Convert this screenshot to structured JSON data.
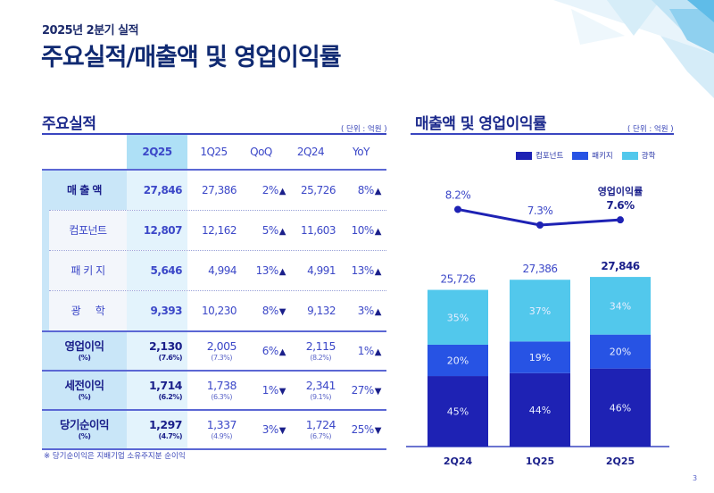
{
  "header": {
    "subtitle": "2025년 2분기 실적",
    "title": "주요실적/매출액 및 영업이익률"
  },
  "table_section": {
    "title": "주요실적",
    "unit": "( 단위 : 억원 )",
    "columns": [
      "2Q25",
      "1Q25",
      "QoQ",
      "2Q24",
      "YoY"
    ],
    "rows": [
      {
        "label": "매 출 액",
        "type": "main",
        "v2q25": "27,846",
        "v1q25": "27,386",
        "qoq": "2%",
        "qoq_dir": "▲",
        "v2q24": "25,726",
        "yoy": "8%",
        "yoy_dir": "▲"
      },
      {
        "label": "컴포넌트",
        "type": "sub",
        "v2q25": "12,807",
        "v1q25": "12,162",
        "qoq": "5%",
        "qoq_dir": "▲",
        "v2q24": "11,603",
        "yoy": "10%",
        "yoy_dir": "▲"
      },
      {
        "label": "패 키 지",
        "type": "sub",
        "v2q25": "5,646",
        "v1q25": "4,994",
        "qoq": "13%",
        "qoq_dir": "▲",
        "v2q24": "4,991",
        "yoy": "13%",
        "yoy_dir": "▲"
      },
      {
        "label": "광     학",
        "type": "sub",
        "v2q25": "9,393",
        "v1q25": "10,230",
        "qoq": "8%",
        "qoq_dir": "▼",
        "v2q24": "9,132",
        "yoy": "3%",
        "yoy_dir": "▲"
      }
    ],
    "profit_rows": [
      {
        "label": "영업이익",
        "sublabel": "(%)",
        "v2q25": "2,130",
        "m2q25": "(7.6%)",
        "v1q25": "2,005",
        "m1q25": "(7.3%)",
        "qoq": "6%",
        "qoq_dir": "▲",
        "v2q24": "2,115",
        "m2q24": "(8.2%)",
        "yoy": "1%",
        "yoy_dir": "▲"
      },
      {
        "label": "세전이익",
        "sublabel": "(%)",
        "v2q25": "1,714",
        "m2q25": "(6.2%)",
        "v1q25": "1,738",
        "m1q25": "(6.3%)",
        "qoq": "1%",
        "qoq_dir": "▼",
        "v2q24": "2,341",
        "m2q24": "(9.1%)",
        "yoy": "27%",
        "yoy_dir": "▼"
      },
      {
        "label": "당기순이익",
        "sublabel": "(%)",
        "v2q25": "1,297",
        "m2q25": "(4.7%)",
        "v1q25": "1,337",
        "m1q25": "(4.9%)",
        "qoq": "3%",
        "qoq_dir": "▼",
        "v2q24": "1,724",
        "m2q24": "(6.7%)",
        "yoy": "25%",
        "yoy_dir": "▼"
      }
    ],
    "footnote": "※ 당기순이익은 지배기업 소유주지분 순이익"
  },
  "chart_section": {
    "title": "매출액 및 영업이익률",
    "unit": "( 단위 : 억원 )"
  },
  "chart_data": {
    "type": "bar",
    "stacked": true,
    "title": "매출액 및 영업이익률",
    "categories": [
      "2Q24",
      "1Q25",
      "2Q25"
    ],
    "totals": [
      25726,
      27386,
      27846
    ],
    "total_labels": [
      "25,726",
      "27,386",
      "27,846"
    ],
    "series": [
      {
        "name": "컴포넌트",
        "color": "#1e22b4",
        "share_pct": [
          45,
          44,
          46
        ]
      },
      {
        "name": "패키지",
        "color": "#2753e4",
        "share_pct": [
          20,
          19,
          20
        ]
      },
      {
        "name": "광학",
        "color": "#52c8ec",
        "share_pct": [
          35,
          37,
          34
        ]
      }
    ],
    "line": {
      "name": "영업이익률",
      "color": "#1e22b4",
      "values": [
        8.2,
        7.3,
        7.6
      ],
      "labels": [
        "8.2%",
        "7.3%",
        "7.6%"
      ]
    },
    "legend": "top-right",
    "grid": false
  },
  "page": {
    "number": "3"
  }
}
